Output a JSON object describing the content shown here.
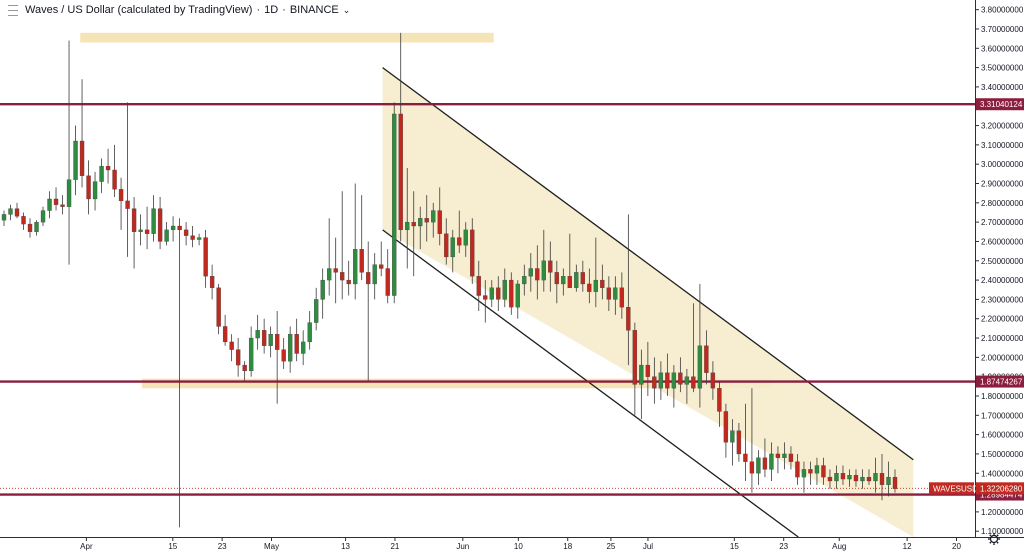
{
  "header": {
    "symbol_title": "Waves / US Dollar (calculated by TradingView)",
    "interval": "1D",
    "exchange": "BINANCE"
  },
  "colors": {
    "up": "#2e8b40",
    "down": "#c0291f",
    "wick": "#3a3a3a",
    "level": "#8b1e3f",
    "zone": "#f3dfa9",
    "channel_fill": "#f6ebcb",
    "channel_line": "#1e1e1e",
    "price_tag": "#c0291f"
  },
  "chart_data": {
    "type": "candlestick",
    "symbol": "WAVESUSD",
    "x_axis": {
      "labels": [
        {
          "date": "2021-04-01",
          "text": "Apr"
        },
        {
          "date": "2021-04-15",
          "text": "15"
        },
        {
          "date": "2021-04-23",
          "text": "23"
        },
        {
          "date": "2021-05-01",
          "text": "May"
        },
        {
          "date": "2021-05-13",
          "text": "13"
        },
        {
          "date": "2021-05-21",
          "text": "21"
        },
        {
          "date": "2021-06-01",
          "text": "Jun"
        },
        {
          "date": "2021-06-10",
          "text": "10"
        },
        {
          "date": "2021-06-18",
          "text": "18"
        },
        {
          "date": "2021-06-25",
          "text": "25"
        },
        {
          "date": "2021-07-01",
          "text": "Jul"
        },
        {
          "date": "2021-07-15",
          "text": "15"
        },
        {
          "date": "2021-07-23",
          "text": "23"
        },
        {
          "date": "2021-08-01",
          "text": "Aug"
        },
        {
          "date": "2021-08-12",
          "text": "12"
        },
        {
          "date": "2021-08-20",
          "text": "20"
        }
      ],
      "range": [
        "2021-03-18",
        "2021-08-23"
      ]
    },
    "y_axis": {
      "range": [
        1.07,
        3.85
      ],
      "ticks": [
        {
          "value": 1.1,
          "text": "1.10000000"
        },
        {
          "value": 1.2,
          "text": "1.20000000"
        },
        {
          "value": 1.3,
          "text": "1.30000000"
        },
        {
          "value": 1.4,
          "text": "1.40000000"
        },
        {
          "value": 1.5,
          "text": "1.50000000"
        },
        {
          "value": 1.6,
          "text": "1.60000000"
        },
        {
          "value": 1.7,
          "text": "1.70000000"
        },
        {
          "value": 1.8,
          "text": "1.80000000"
        },
        {
          "value": 1.9,
          "text": "1.90000000"
        },
        {
          "value": 2.0,
          "text": "2.00000000"
        },
        {
          "value": 2.1,
          "text": "2.10000000"
        },
        {
          "value": 2.2,
          "text": "2.20000000"
        },
        {
          "value": 2.3,
          "text": "2.30000000"
        },
        {
          "value": 2.4,
          "text": "2.40000000"
        },
        {
          "value": 2.5,
          "text": "2.50000000"
        },
        {
          "value": 2.6,
          "text": "2.60000000"
        },
        {
          "value": 2.7,
          "text": "2.70000000"
        },
        {
          "value": 2.8,
          "text": "2.80000000"
        },
        {
          "value": 2.9,
          "text": "2.90000000"
        },
        {
          "value": 3.0,
          "text": "3.00000000"
        },
        {
          "value": 3.1,
          "text": "3.10000000"
        },
        {
          "value": 3.2,
          "text": "3.20000000"
        },
        {
          "value": 3.3,
          "text": "3.30000000"
        },
        {
          "value": 3.4,
          "text": "3.40000000"
        },
        {
          "value": 3.5,
          "text": "3.50000000"
        },
        {
          "value": 3.6,
          "text": "3.60000000"
        },
        {
          "value": 3.7,
          "text": "3.70000000"
        },
        {
          "value": 3.8,
          "text": "3.80000000"
        }
      ]
    },
    "horizontal_levels": [
      {
        "value": 3.31040124,
        "text": "3.31040124"
      },
      {
        "value": 1.87474267,
        "text": "1.87474267"
      },
      {
        "value": 1.28984474,
        "text": "1.28984474"
      }
    ],
    "current_price": {
      "label": "WAVESUSD",
      "value": 1.3220628,
      "text": "1.32206280"
    },
    "zones": [
      {
        "from": "2021-03-31",
        "to": "2021-06-06",
        "low": 3.63,
        "high": 3.68
      },
      {
        "from": "2021-04-10",
        "to": "2021-07-21",
        "low": 1.84,
        "high": 1.89
      }
    ],
    "channel": {
      "upper": {
        "from": {
          "date": "2021-05-19",
          "value": 3.5
        },
        "to": {
          "date": "2021-08-13",
          "value": 1.47
        }
      },
      "lower": {
        "from": {
          "date": "2021-05-19",
          "value": 2.66
        },
        "to": {
          "date": "2021-08-13",
          "value": 0.63
        }
      },
      "end": "2021-08-13"
    },
    "candles": [
      {
        "o": 2.71,
        "h": 2.76,
        "l": 2.68,
        "c": 2.74
      },
      {
        "o": 2.74,
        "h": 2.79,
        "l": 2.71,
        "c": 2.77
      },
      {
        "o": 2.77,
        "h": 2.8,
        "l": 2.72,
        "c": 2.73
      },
      {
        "o": 2.73,
        "h": 2.75,
        "l": 2.66,
        "c": 2.69
      },
      {
        "o": 2.69,
        "h": 2.72,
        "l": 2.62,
        "c": 2.65
      },
      {
        "o": 2.65,
        "h": 2.71,
        "l": 2.63,
        "c": 2.7
      },
      {
        "o": 2.7,
        "h": 2.78,
        "l": 2.68,
        "c": 2.76
      },
      {
        "o": 2.76,
        "h": 2.86,
        "l": 2.72,
        "c": 2.82
      },
      {
        "o": 2.82,
        "h": 2.88,
        "l": 2.76,
        "c": 2.79
      },
      {
        "o": 2.79,
        "h": 2.84,
        "l": 2.74,
        "c": 2.78
      },
      {
        "o": 2.78,
        "h": 3.64,
        "l": 2.48,
        "c": 2.92
      },
      {
        "o": 2.92,
        "h": 3.2,
        "l": 2.84,
        "c": 3.12
      },
      {
        "o": 3.12,
        "h": 3.44,
        "l": 2.88,
        "c": 2.94
      },
      {
        "o": 2.94,
        "h": 3.02,
        "l": 2.74,
        "c": 2.82
      },
      {
        "o": 2.82,
        "h": 2.96,
        "l": 2.76,
        "c": 2.91
      },
      {
        "o": 2.91,
        "h": 3.03,
        "l": 2.85,
        "c": 2.99
      },
      {
        "o": 2.99,
        "h": 3.08,
        "l": 2.9,
        "c": 2.97
      },
      {
        "o": 2.97,
        "h": 3.1,
        "l": 2.83,
        "c": 2.87
      },
      {
        "o": 2.87,
        "h": 2.93,
        "l": 2.66,
        "c": 2.81
      },
      {
        "o": 2.81,
        "h": 3.32,
        "l": 2.52,
        "c": 2.77
      },
      {
        "o": 2.77,
        "h": 2.83,
        "l": 2.46,
        "c": 2.65
      },
      {
        "o": 2.65,
        "h": 2.74,
        "l": 2.58,
        "c": 2.66
      },
      {
        "o": 2.66,
        "h": 2.78,
        "l": 2.56,
        "c": 2.64
      },
      {
        "o": 2.64,
        "h": 2.84,
        "l": 2.6,
        "c": 2.77
      },
      {
        "o": 2.77,
        "h": 2.83,
        "l": 2.56,
        "c": 2.6
      },
      {
        "o": 2.6,
        "h": 2.7,
        "l": 2.58,
        "c": 2.66
      },
      {
        "o": 2.66,
        "h": 2.73,
        "l": 2.6,
        "c": 2.68
      },
      {
        "o": 2.68,
        "h": 2.72,
        "l": 1.12,
        "c": 2.66
      },
      {
        "o": 2.66,
        "h": 2.7,
        "l": 2.58,
        "c": 2.63
      },
      {
        "o": 2.63,
        "h": 2.68,
        "l": 2.57,
        "c": 2.61
      },
      {
        "o": 2.61,
        "h": 2.64,
        "l": 2.58,
        "c": 2.62
      },
      {
        "o": 2.62,
        "h": 2.66,
        "l": 2.36,
        "c": 2.42
      },
      {
        "o": 2.42,
        "h": 2.48,
        "l": 2.3,
        "c": 2.36
      },
      {
        "o": 2.36,
        "h": 2.38,
        "l": 2.12,
        "c": 2.16
      },
      {
        "o": 2.16,
        "h": 2.22,
        "l": 2.06,
        "c": 2.08
      },
      {
        "o": 2.08,
        "h": 2.12,
        "l": 1.98,
        "c": 2.04
      },
      {
        "o": 2.04,
        "h": 2.1,
        "l": 1.9,
        "c": 1.96
      },
      {
        "o": 1.96,
        "h": 1.98,
        "l": 1.88,
        "c": 1.93
      },
      {
        "o": 1.93,
        "h": 2.16,
        "l": 1.9,
        "c": 2.1
      },
      {
        "o": 2.1,
        "h": 2.22,
        "l": 2.04,
        "c": 2.14
      },
      {
        "o": 2.14,
        "h": 2.2,
        "l": 2.02,
        "c": 2.06
      },
      {
        "o": 2.06,
        "h": 2.16,
        "l": 2.0,
        "c": 2.12
      },
      {
        "o": 2.12,
        "h": 2.24,
        "l": 1.76,
        "c": 2.04
      },
      {
        "o": 2.04,
        "h": 2.1,
        "l": 1.94,
        "c": 1.98
      },
      {
        "o": 1.98,
        "h": 2.16,
        "l": 1.92,
        "c": 2.12
      },
      {
        "o": 2.12,
        "h": 2.2,
        "l": 1.98,
        "c": 2.02
      },
      {
        "o": 2.02,
        "h": 2.14,
        "l": 1.96,
        "c": 2.08
      },
      {
        "o": 2.08,
        "h": 2.24,
        "l": 2.04,
        "c": 2.18
      },
      {
        "o": 2.18,
        "h": 2.36,
        "l": 2.14,
        "c": 2.3
      },
      {
        "o": 2.3,
        "h": 2.46,
        "l": 2.2,
        "c": 2.4
      },
      {
        "o": 2.4,
        "h": 2.72,
        "l": 2.32,
        "c": 2.46
      },
      {
        "o": 2.46,
        "h": 2.62,
        "l": 2.28,
        "c": 2.44
      },
      {
        "o": 2.44,
        "h": 2.86,
        "l": 2.3,
        "c": 2.4
      },
      {
        "o": 2.4,
        "h": 2.5,
        "l": 2.32,
        "c": 2.38
      },
      {
        "o": 2.38,
        "h": 2.9,
        "l": 2.3,
        "c": 2.56
      },
      {
        "o": 2.56,
        "h": 2.84,
        "l": 2.4,
        "c": 2.44
      },
      {
        "o": 2.44,
        "h": 2.6,
        "l": 1.88,
        "c": 2.38
      },
      {
        "o": 2.38,
        "h": 2.54,
        "l": 2.3,
        "c": 2.48
      },
      {
        "o": 2.48,
        "h": 2.6,
        "l": 2.42,
        "c": 2.46
      },
      {
        "o": 2.46,
        "h": 2.56,
        "l": 2.28,
        "c": 2.32
      },
      {
        "o": 2.32,
        "h": 3.32,
        "l": 2.28,
        "c": 3.26
      },
      {
        "o": 3.26,
        "h": 3.68,
        "l": 2.6,
        "c": 2.66
      },
      {
        "o": 2.66,
        "h": 2.98,
        "l": 2.46,
        "c": 2.7
      },
      {
        "o": 2.7,
        "h": 2.86,
        "l": 2.42,
        "c": 2.68
      },
      {
        "o": 2.68,
        "h": 2.78,
        "l": 2.56,
        "c": 2.72
      },
      {
        "o": 2.72,
        "h": 2.84,
        "l": 2.6,
        "c": 2.7
      },
      {
        "o": 2.7,
        "h": 2.8,
        "l": 2.62,
        "c": 2.76
      },
      {
        "o": 2.76,
        "h": 2.88,
        "l": 2.58,
        "c": 2.64
      },
      {
        "o": 2.64,
        "h": 2.72,
        "l": 2.48,
        "c": 2.52
      },
      {
        "o": 2.52,
        "h": 2.66,
        "l": 2.44,
        "c": 2.62
      },
      {
        "o": 2.62,
        "h": 2.76,
        "l": 2.54,
        "c": 2.58
      },
      {
        "o": 2.58,
        "h": 2.7,
        "l": 2.52,
        "c": 2.66
      },
      {
        "o": 2.66,
        "h": 2.72,
        "l": 2.38,
        "c": 2.42
      },
      {
        "o": 2.42,
        "h": 2.5,
        "l": 2.24,
        "c": 2.32
      },
      {
        "o": 2.32,
        "h": 2.4,
        "l": 2.18,
        "c": 2.3
      },
      {
        "o": 2.3,
        "h": 2.4,
        "l": 2.26,
        "c": 2.36
      },
      {
        "o": 2.36,
        "h": 2.42,
        "l": 2.24,
        "c": 2.3
      },
      {
        "o": 2.3,
        "h": 2.46,
        "l": 2.26,
        "c": 2.4
      },
      {
        "o": 2.4,
        "h": 2.44,
        "l": 2.22,
        "c": 2.26
      },
      {
        "o": 2.26,
        "h": 2.4,
        "l": 2.2,
        "c": 2.38
      },
      {
        "o": 2.38,
        "h": 2.48,
        "l": 2.32,
        "c": 2.42
      },
      {
        "o": 2.42,
        "h": 2.54,
        "l": 2.34,
        "c": 2.46
      },
      {
        "o": 2.46,
        "h": 2.58,
        "l": 2.3,
        "c": 2.4
      },
      {
        "o": 2.4,
        "h": 2.66,
        "l": 2.34,
        "c": 2.5
      },
      {
        "o": 2.5,
        "h": 2.6,
        "l": 2.34,
        "c": 2.44
      },
      {
        "o": 2.44,
        "h": 2.5,
        "l": 2.28,
        "c": 2.38
      },
      {
        "o": 2.38,
        "h": 2.46,
        "l": 2.32,
        "c": 2.42
      },
      {
        "o": 2.42,
        "h": 2.64,
        "l": 2.36,
        "c": 2.36
      },
      {
        "o": 2.36,
        "h": 2.48,
        "l": 2.34,
        "c": 2.44
      },
      {
        "o": 2.44,
        "h": 2.5,
        "l": 2.34,
        "c": 2.38
      },
      {
        "o": 2.38,
        "h": 2.46,
        "l": 2.28,
        "c": 2.34
      },
      {
        "o": 2.34,
        "h": 2.62,
        "l": 2.26,
        "c": 2.4
      },
      {
        "o": 2.4,
        "h": 2.48,
        "l": 2.3,
        "c": 2.36
      },
      {
        "o": 2.36,
        "h": 2.42,
        "l": 2.24,
        "c": 2.3
      },
      {
        "o": 2.3,
        "h": 2.42,
        "l": 2.22,
        "c": 2.36
      },
      {
        "o": 2.36,
        "h": 2.44,
        "l": 2.2,
        "c": 2.26
      },
      {
        "o": 2.26,
        "h": 2.74,
        "l": 1.96,
        "c": 2.14
      },
      {
        "o": 2.14,
        "h": 2.18,
        "l": 1.7,
        "c": 1.86
      },
      {
        "o": 1.86,
        "h": 2.04,
        "l": 1.68,
        "c": 1.96
      },
      {
        "o": 1.96,
        "h": 2.08,
        "l": 1.8,
        "c": 1.9
      },
      {
        "o": 1.9,
        "h": 2.0,
        "l": 1.76,
        "c": 1.84
      },
      {
        "o": 1.84,
        "h": 1.98,
        "l": 1.78,
        "c": 1.92
      },
      {
        "o": 1.92,
        "h": 2.02,
        "l": 1.8,
        "c": 1.84
      },
      {
        "o": 1.84,
        "h": 1.96,
        "l": 1.74,
        "c": 1.92
      },
      {
        "o": 1.92,
        "h": 2.0,
        "l": 1.82,
        "c": 1.86
      },
      {
        "o": 1.86,
        "h": 1.94,
        "l": 1.76,
        "c": 1.9
      },
      {
        "o": 1.9,
        "h": 2.28,
        "l": 1.82,
        "c": 1.84
      },
      {
        "o": 1.84,
        "h": 2.38,
        "l": 1.74,
        "c": 2.06
      },
      {
        "o": 2.06,
        "h": 2.14,
        "l": 1.86,
        "c": 1.92
      },
      {
        "o": 1.92,
        "h": 1.98,
        "l": 1.78,
        "c": 1.84
      },
      {
        "o": 1.84,
        "h": 1.88,
        "l": 1.64,
        "c": 1.72
      },
      {
        "o": 1.72,
        "h": 1.76,
        "l": 1.48,
        "c": 1.56
      },
      {
        "o": 1.56,
        "h": 1.68,
        "l": 1.44,
        "c": 1.62
      },
      {
        "o": 1.62,
        "h": 1.66,
        "l": 1.46,
        "c": 1.5
      },
      {
        "o": 1.5,
        "h": 1.76,
        "l": 1.36,
        "c": 1.46
      },
      {
        "o": 1.46,
        "h": 1.84,
        "l": 1.3,
        "c": 1.4
      },
      {
        "o": 1.4,
        "h": 1.52,
        "l": 1.34,
        "c": 1.48
      },
      {
        "o": 1.48,
        "h": 1.58,
        "l": 1.38,
        "c": 1.42
      },
      {
        "o": 1.42,
        "h": 1.56,
        "l": 1.36,
        "c": 1.5
      },
      {
        "o": 1.5,
        "h": 1.54,
        "l": 1.4,
        "c": 1.48
      },
      {
        "o": 1.48,
        "h": 1.56,
        "l": 1.42,
        "c": 1.5
      },
      {
        "o": 1.5,
        "h": 1.54,
        "l": 1.42,
        "c": 1.46
      },
      {
        "o": 1.46,
        "h": 1.5,
        "l": 1.34,
        "c": 1.38
      },
      {
        "o": 1.38,
        "h": 1.46,
        "l": 1.3,
        "c": 1.42
      },
      {
        "o": 1.42,
        "h": 1.46,
        "l": 1.34,
        "c": 1.4
      },
      {
        "o": 1.4,
        "h": 1.48,
        "l": 1.34,
        "c": 1.44
      },
      {
        "o": 1.44,
        "h": 1.48,
        "l": 1.34,
        "c": 1.38
      },
      {
        "o": 1.38,
        "h": 1.42,
        "l": 1.32,
        "c": 1.36
      },
      {
        "o": 1.36,
        "h": 1.44,
        "l": 1.32,
        "c": 1.4
      },
      {
        "o": 1.4,
        "h": 1.44,
        "l": 1.34,
        "c": 1.37
      },
      {
        "o": 1.37,
        "h": 1.42,
        "l": 1.33,
        "c": 1.39
      },
      {
        "o": 1.39,
        "h": 1.42,
        "l": 1.33,
        "c": 1.36
      },
      {
        "o": 1.36,
        "h": 1.42,
        "l": 1.32,
        "c": 1.38
      },
      {
        "o": 1.38,
        "h": 1.42,
        "l": 1.34,
        "c": 1.36
      },
      {
        "o": 1.36,
        "h": 1.48,
        "l": 1.3,
        "c": 1.4
      },
      {
        "o": 1.4,
        "h": 1.5,
        "l": 1.26,
        "c": 1.34
      },
      {
        "o": 1.34,
        "h": 1.46,
        "l": 1.28,
        "c": 1.38
      },
      {
        "o": 1.38,
        "h": 1.42,
        "l": 1.3,
        "c": 1.32
      }
    ]
  }
}
